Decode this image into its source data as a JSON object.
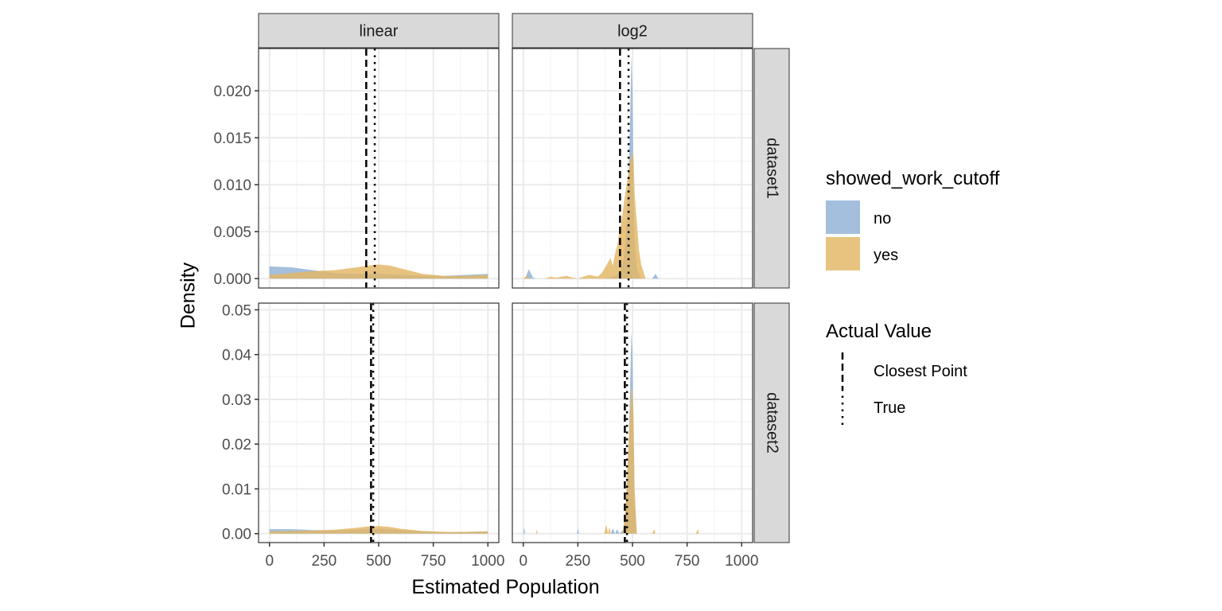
{
  "chart_data": {
    "type": "area",
    "xlabel": "Estimated Population",
    "ylabel": "Density",
    "facet_cols": [
      "linear",
      "log2"
    ],
    "facet_rows": [
      "dataset1",
      "dataset2"
    ],
    "xlim": [
      -50,
      1050
    ],
    "x_ticks": [
      0,
      250,
      500,
      750,
      1000
    ],
    "x_tick_labels": [
      "0",
      "250",
      "500",
      "750",
      "1000"
    ],
    "rows": [
      {
        "name": "dataset1",
        "ylim": [
          -0.001,
          0.0245
        ],
        "y_ticks": [
          0.0,
          0.005,
          0.01,
          0.015,
          0.02
        ],
        "y_tick_labels": [
          "0.000",
          "0.005",
          "0.010",
          "0.015",
          "0.020"
        ]
      },
      {
        "name": "dataset2",
        "ylim": [
          -0.002,
          0.0515
        ],
        "y_ticks": [
          0.0,
          0.01,
          0.02,
          0.03,
          0.04,
          0.05
        ],
        "y_tick_labels": [
          "0.00",
          "0.01",
          "0.02",
          "0.03",
          "0.04",
          "0.05"
        ]
      }
    ],
    "legend": {
      "fill_title": "showed_work_cutoff",
      "fill_items": [
        {
          "label": "no",
          "color": "#8FB1D6"
        },
        {
          "label": "yes",
          "color": "#E3B664"
        }
      ],
      "line_title": "Actual Value",
      "line_items": [
        {
          "label": "Closest Point",
          "dash": "dashed"
        },
        {
          "label": "True",
          "dash": "dotted"
        }
      ]
    },
    "panels": [
      {
        "row": "dataset1",
        "col": "linear",
        "closest_point": 443,
        "true_value": 482,
        "series": [
          {
            "name": "no",
            "color": "#8FB1D6",
            "x": [
              0,
              100,
              200,
              300,
              400,
              500,
              600,
              700,
              800,
              900,
              1000
            ],
            "y": [
              0.0013,
              0.0012,
              0.0009,
              0.0006,
              0.0005,
              0.0005,
              0.0004,
              0.0003,
              0.0003,
              0.0004,
              0.0005
            ]
          },
          {
            "name": "yes",
            "color": "#E3B664",
            "x": [
              0,
              100,
              200,
              300,
              400,
              450,
              500,
              550,
              600,
              700,
              800,
              900,
              1000
            ],
            "y": [
              0.0004,
              0.0006,
              0.0008,
              0.0009,
              0.0012,
              0.0014,
              0.0015,
              0.0014,
              0.0011,
              0.0005,
              0.0003,
              0.0003,
              0.0004
            ]
          }
        ]
      },
      {
        "row": "dataset1",
        "col": "log2",
        "closest_point": 443,
        "true_value": 482,
        "series": [
          {
            "name": "no",
            "color": "#8FB1D6",
            "x": [
              0,
              10,
              25,
              45,
              60,
              380,
              420,
              445,
              460,
              470,
              480,
              490,
              495,
              500,
              505,
              510,
              520,
              540,
              590,
              605,
              620,
              1000
            ],
            "y": [
              0,
              0.0001,
              0.001,
              0.0001,
              0,
              0,
              0.0003,
              0.0008,
              0.002,
              0.0045,
              0.009,
              0.018,
              0.0237,
              0.02,
              0.009,
              0.004,
              0.001,
              0,
              0,
              0.0005,
              0,
              0
            ]
          },
          {
            "name": "yes",
            "color": "#E3B664",
            "x": [
              0,
              10,
              20,
              30,
              100,
              125,
              150,
              175,
              200,
              225,
              250,
              275,
              300,
              325,
              340,
              360,
              390,
              400,
              410,
              420,
              430,
              440,
              450,
              460,
              470,
              480,
              490,
              500,
              505,
              510,
              520,
              530,
              540,
              560,
              1000
            ],
            "y": [
              0,
              0.0002,
              0.0003,
              0,
              0,
              0.0002,
              0.0001,
              0.0002,
              0.0003,
              0.0001,
              0,
              0.0002,
              0.0004,
              0.0003,
              0.0002,
              0.0006,
              0.0018,
              0.0022,
              0.0014,
              0.0026,
              0.0035,
              0.005,
              0.006,
              0.008,
              0.0095,
              0.011,
              0.0125,
              0.0135,
              0.0128,
              0.009,
              0.006,
              0.003,
              0.0015,
              0,
              0
            ]
          }
        ]
      },
      {
        "row": "dataset2",
        "col": "linear",
        "closest_point": 465,
        "true_value": 475,
        "series": [
          {
            "name": "no",
            "color": "#8FB1D6",
            "x": [
              0,
              100,
              200,
              300,
              400,
              500,
              600,
              700,
              800,
              900,
              1000
            ],
            "y": [
              0.001,
              0.001,
              0.0008,
              0.0007,
              0.0009,
              0.0011,
              0.0008,
              0.0005,
              0.0003,
              0.0004,
              0.0005
            ]
          },
          {
            "name": "yes",
            "color": "#E3B664",
            "x": [
              0,
              100,
              200,
              300,
              400,
              450,
              500,
              550,
              600,
              700,
              800,
              900,
              1000
            ],
            "y": [
              0.0005,
              0.0006,
              0.0007,
              0.0009,
              0.0013,
              0.0016,
              0.0017,
              0.0015,
              0.0011,
              0.0006,
              0.0004,
              0.0004,
              0.0005
            ]
          }
        ]
      },
      {
        "row": "dataset2",
        "col": "log2",
        "closest_point": 465,
        "true_value": 475,
        "series": [
          {
            "name": "no",
            "color": "#8FB1D6",
            "x": [
              0,
              2,
              5,
              8,
              245,
              250,
              255,
              400,
              410,
              420,
              430,
              440,
              460,
              470,
              480,
              490,
              495,
              500,
              505,
              510,
              520,
              1000
            ],
            "y": [
              0,
              0.001,
              0.0012,
              0,
              0,
              0.0011,
              0,
              0,
              0.0012,
              0,
              0.001,
              0,
              0.001,
              0.005,
              0.015,
              0.035,
              0.045,
              0.04,
              0.02,
              0.006,
              0,
              0
            ]
          },
          {
            "name": "yes",
            "color": "#E3B664",
            "x": [
              0,
              58,
              62,
              66,
              370,
              380,
              388,
              392,
              396,
              400,
              455,
              460,
              465,
              470,
              480,
              490,
              495,
              500,
              505,
              510,
              520,
              590,
              600,
              605,
              790,
              800,
              805,
              1000
            ],
            "y": [
              0,
              0,
              0.001,
              0,
              0,
              0.002,
              0,
              0.001,
              0.0015,
              0,
              0,
              0.002,
              0.004,
              0.008,
              0.018,
              0.028,
              0.032,
              0.032,
              0.026,
              0.01,
              0,
              0,
              0.001,
              0,
              0,
              0.001,
              0,
              0
            ]
          }
        ]
      }
    ]
  }
}
